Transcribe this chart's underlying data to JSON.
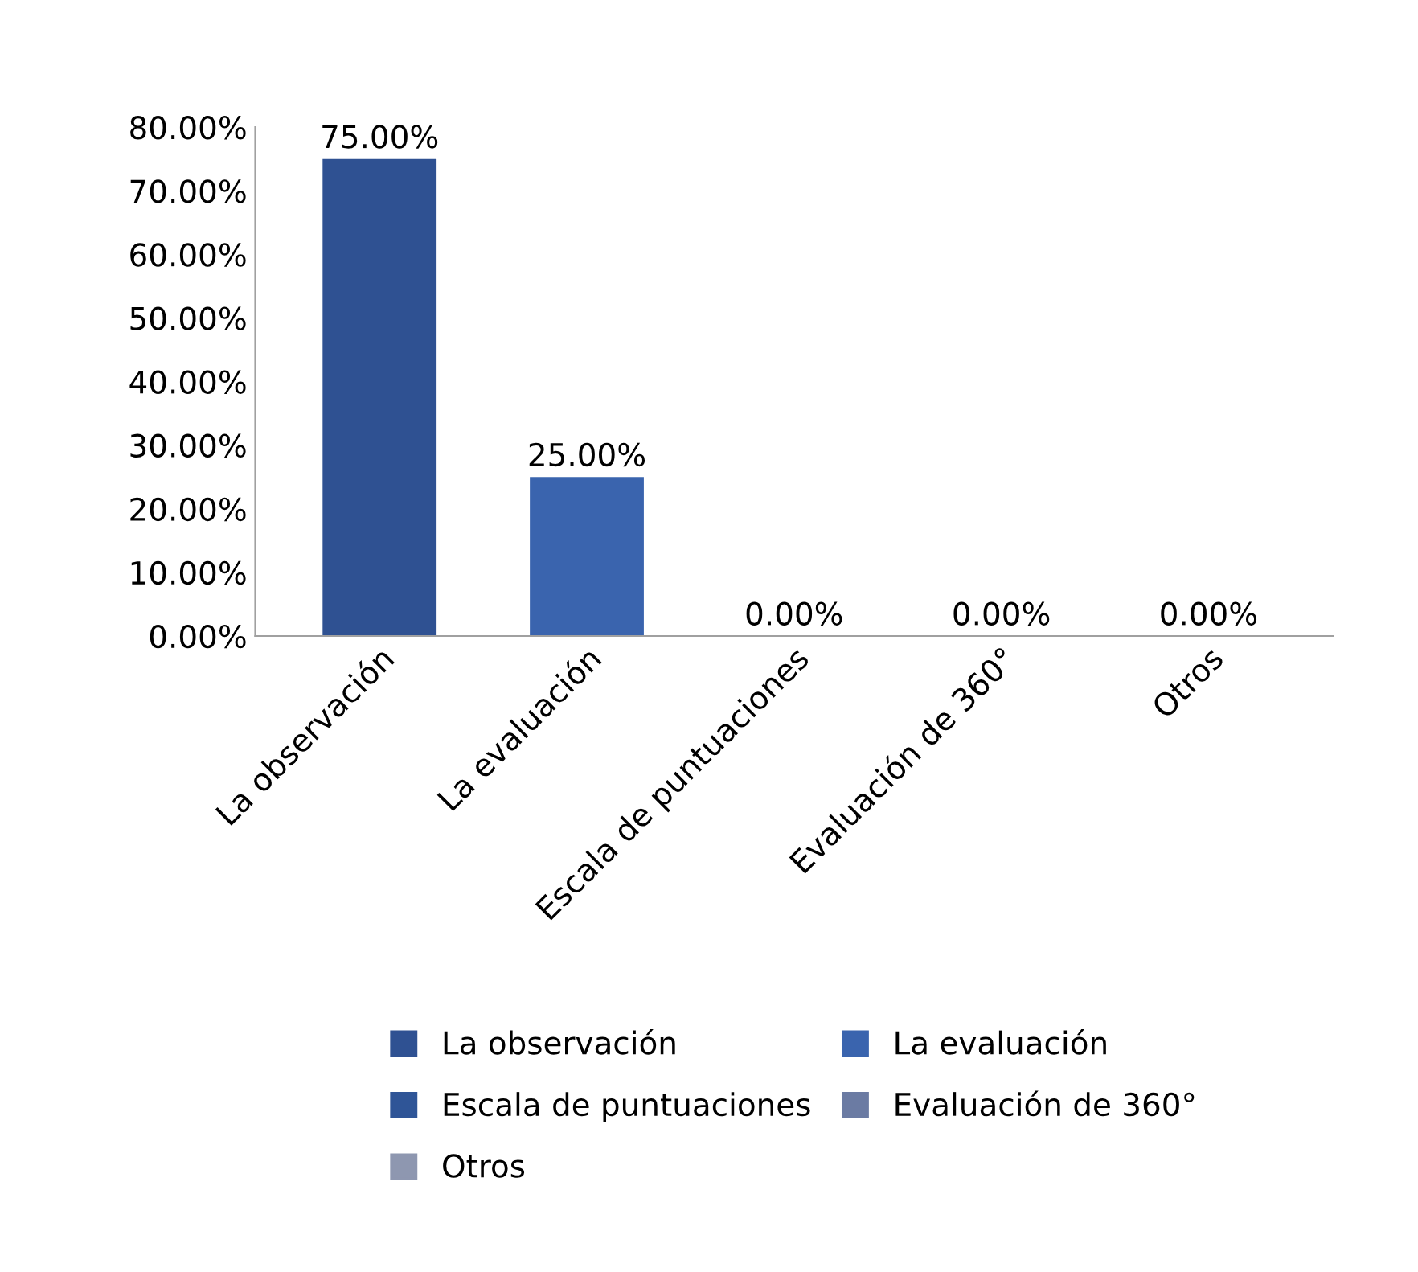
{
  "chart_data": {
    "type": "bar",
    "categories": [
      "La observación",
      "La evaluación",
      "Escala de puntuaciones",
      "Evaluación de 360°",
      "Otros"
    ],
    "series": [
      {
        "name": "La observación",
        "color": "#2f5192",
        "values": [
          75,
          null,
          null,
          null,
          null
        ],
        "value_labels": [
          "75.00%",
          null,
          null,
          null,
          null
        ]
      },
      {
        "name": "La evaluación",
        "color": "#3a64ae",
        "values": [
          null,
          25,
          null,
          null,
          null
        ],
        "value_labels": [
          null,
          "25.00%",
          null,
          null,
          null
        ]
      },
      {
        "name": "Escala de puntuaciones",
        "color": "#2f5597",
        "values": [
          null,
          null,
          0,
          null,
          null
        ],
        "value_labels": [
          null,
          null,
          "0.00%",
          null,
          null
        ]
      },
      {
        "name": "Evaluación de 360°",
        "color": "#6b7ba3",
        "values": [
          null,
          null,
          null,
          0,
          null
        ],
        "value_labels": [
          null,
          null,
          null,
          "0.00%",
          null
        ]
      },
      {
        "name": "Otros",
        "color": "#8e97b0",
        "values": [
          null,
          null,
          null,
          null,
          0
        ],
        "value_labels": [
          null,
          null,
          null,
          null,
          "0.00%"
        ]
      }
    ],
    "ylim": [
      0,
      80
    ],
    "yticks": [
      {
        "value": 0,
        "label": "0.00%"
      },
      {
        "value": 10,
        "label": "10.00%"
      },
      {
        "value": 20,
        "label": "20.00%"
      },
      {
        "value": 30,
        "label": "30.00%"
      },
      {
        "value": 40,
        "label": "40.00%"
      },
      {
        "value": 50,
        "label": "50.00%"
      },
      {
        "value": 60,
        "label": "60.00%"
      },
      {
        "value": 70,
        "label": "70.00%"
      },
      {
        "value": 80,
        "label": "80.00%"
      }
    ],
    "legend": "bottom"
  }
}
